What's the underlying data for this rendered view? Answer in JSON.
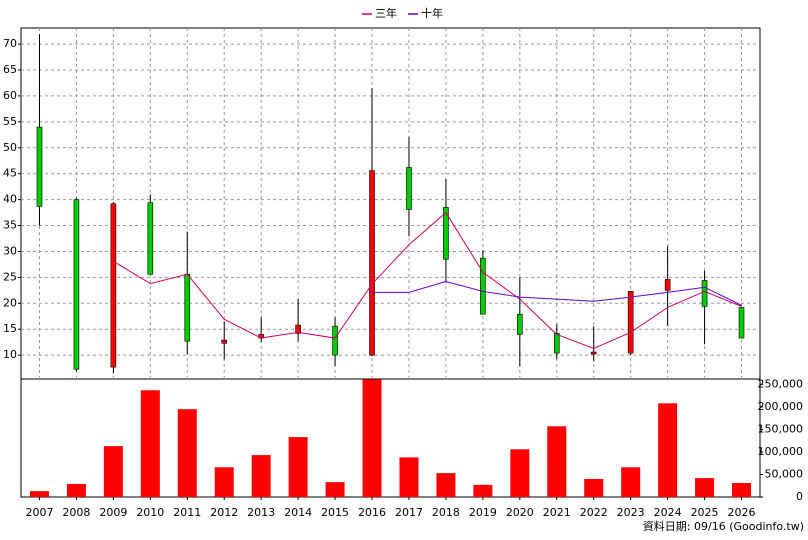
{
  "chart_data": [
    {
      "type": "candlestick",
      "categories": [
        "2007",
        "2008",
        "2009",
        "2010",
        "2011",
        "2012",
        "2013",
        "2014",
        "2015",
        "2016",
        "2017",
        "2018",
        "2019",
        "2020",
        "2021",
        "2022",
        "2023",
        "2024",
        "2025",
        "2026"
      ],
      "open": [
        54.0,
        40.0,
        7.7,
        39.4,
        25.6,
        12.3,
        13.3,
        14.2,
        15.6,
        10.0,
        46.2,
        38.5,
        28.7,
        17.9,
        14.2,
        10.4,
        10.4,
        22.5,
        24.4,
        19.2
      ],
      "high": [
        71.9,
        40.4,
        39.5,
        41.0,
        33.8,
        16.5,
        17.3,
        20.8,
        17.3,
        61.5,
        52.1,
        44.0,
        30.2,
        25.0,
        16.0,
        15.6,
        22.3,
        31.0,
        26.3,
        19.2
      ],
      "low": [
        35.0,
        6.9,
        6.5,
        25.6,
        10.2,
        9.2,
        12.5,
        12.7,
        7.9,
        9.8,
        32.9,
        24.0,
        17.9,
        7.9,
        9.2,
        8.8,
        10.0,
        15.6,
        12.1,
        13.3
      ],
      "close": [
        38.7,
        7.3,
        39.2,
        25.6,
        12.7,
        12.9,
        14.0,
        15.8,
        10.0,
        45.6,
        38.1,
        28.5,
        17.9,
        14.0,
        10.4,
        10.6,
        22.3,
        24.6,
        19.4,
        13.3
      ],
      "up_color": "#ff0000",
      "down_color": "#00cc00",
      "series": [
        {
          "name": "三年",
          "color": "#cc0066",
          "values": [
            null,
            null,
            28.1,
            23.8,
            25.6,
            16.9,
            13.3,
            14.4,
            13.3,
            23.7,
            31.3,
            37.5,
            26.0,
            20.8,
            14.0,
            11.3,
            14.4,
            19.2,
            22.3,
            19.4
          ]
        },
        {
          "name": "十年",
          "color": "#6600cc",
          "values": [
            null,
            null,
            null,
            null,
            null,
            null,
            null,
            null,
            null,
            22.1,
            22.1,
            24.2,
            22.3,
            21.2,
            20.8,
            20.4,
            21.2,
            22.1,
            23.1,
            19.6
          ]
        }
      ],
      "ylim": [
        5.4,
        73.1
      ],
      "yticks": [
        10,
        15,
        20,
        25,
        30,
        35,
        40,
        45,
        50,
        55,
        60,
        65,
        70
      ],
      "grid": true,
      "legend": "top"
    },
    {
      "type": "bar",
      "color": "#ff0000",
      "values": [
        13000,
        29000,
        113000,
        237000,
        195000,
        66000,
        93000,
        133000,
        33000,
        261000,
        88000,
        53000,
        27000,
        106000,
        157000,
        40000,
        66000,
        208000,
        42000,
        31000
      ],
      "ylim": [
        0,
        262000
      ],
      "yticks": [
        0,
        {
          "value": 50000,
          "label": "50,000"
        },
        {
          "value": 100000,
          "label": "100,000"
        },
        {
          "value": 150000,
          "label": "150,000"
        },
        {
          "value": 200000,
          "label": "200,000"
        },
        {
          "value": 250000,
          "label": "250,000"
        }
      ]
    }
  ],
  "footer": "資料日期: 09/16  (Goodinfo.tw)"
}
